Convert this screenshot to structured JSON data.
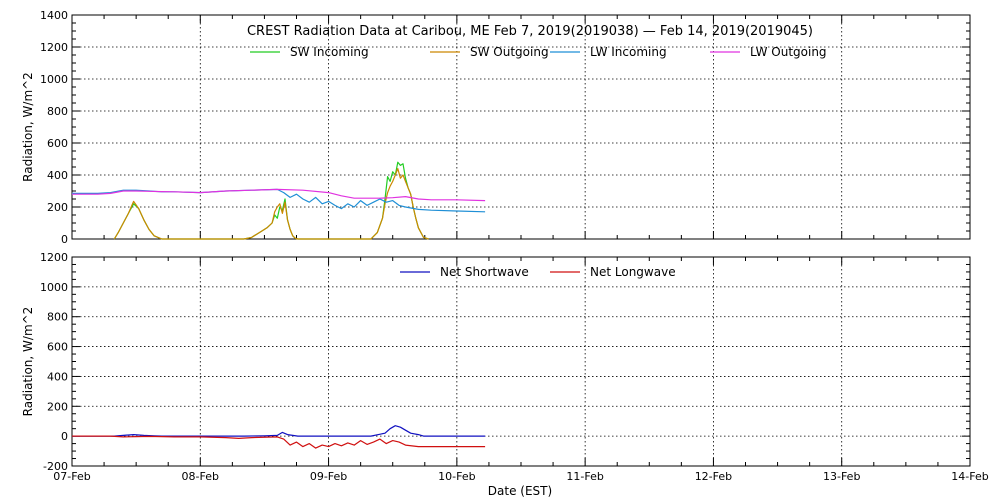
{
  "title": "CREST Radiation Data at Caribou, ME   Feb  7, 2019(2019038) — Feb 14, 2019(2019045)",
  "xlabel": "Date (EST)",
  "x_ticks": [
    "07-Feb",
    "08-Feb",
    "09-Feb",
    "10-Feb",
    "11-Feb",
    "12-Feb",
    "13-Feb",
    "14-Feb"
  ],
  "chart_data": [
    {
      "type": "line",
      "x_unit": "days since 07-Feb 00:00 EST",
      "xlim": [
        0,
        7
      ],
      "ylabel": "Radiation, W/m^2",
      "ylim": [
        0,
        1400
      ],
      "yticks": [
        0,
        200,
        400,
        600,
        800,
        1000,
        1200,
        1400
      ],
      "grid": true,
      "legend_position": "top",
      "series": [
        {
          "name": "SW Incoming",
          "color": "#22cc22",
          "x": [
            0.33,
            0.36,
            0.4,
            0.44,
            0.48,
            0.52,
            0.56,
            0.6,
            0.64,
            0.7,
            1.34,
            1.4,
            1.44,
            1.48,
            1.52,
            1.56,
            1.58,
            1.6,
            1.62,
            1.64,
            1.66,
            1.68,
            1.7,
            1.72,
            1.74,
            1.76,
            2.33,
            2.38,
            2.42,
            2.44,
            2.46,
            2.48,
            2.5,
            2.52,
            2.54,
            2.56,
            2.58,
            2.6,
            2.62,
            2.64,
            2.66,
            2.68,
            2.7,
            2.74,
            2.78
          ],
          "y": [
            0,
            40,
            100,
            160,
            220,
            190,
            120,
            60,
            20,
            0,
            0,
            10,
            30,
            50,
            70,
            100,
            150,
            130,
            200,
            180,
            250,
            120,
            60,
            20,
            5,
            0,
            0,
            40,
            130,
            250,
            390,
            360,
            420,
            400,
            480,
            460,
            470,
            380,
            320,
            280,
            200,
            130,
            70,
            10,
            0
          ]
        },
        {
          "name": "SW Outgoing",
          "color": "#cc8800",
          "x": [
            0.33,
            0.36,
            0.4,
            0.44,
            0.48,
            0.52,
            0.56,
            0.6,
            0.64,
            0.7,
            1.34,
            1.4,
            1.44,
            1.48,
            1.52,
            1.56,
            1.58,
            1.6,
            1.62,
            1.64,
            1.66,
            1.68,
            1.7,
            1.72,
            1.74,
            1.76,
            2.33,
            2.38,
            2.42,
            2.44,
            2.46,
            2.48,
            2.5,
            2.52,
            2.54,
            2.56,
            2.58,
            2.6,
            2.62,
            2.64,
            2.66,
            2.68,
            2.7,
            2.74,
            2.78
          ],
          "y": [
            0,
            40,
            100,
            160,
            235,
            190,
            120,
            60,
            20,
            0,
            0,
            10,
            30,
            50,
            70,
            100,
            170,
            200,
            220,
            160,
            230,
            120,
            60,
            20,
            5,
            0,
            0,
            40,
            130,
            220,
            290,
            330,
            360,
            400,
            440,
            380,
            400,
            360,
            320,
            280,
            200,
            130,
            70,
            10,
            0
          ]
        },
        {
          "name": "LW Incoming",
          "color": "#1f8fd6",
          "x": [
            0,
            0.2,
            0.3,
            0.4,
            0.5,
            0.6,
            0.7,
            0.8,
            1.0,
            1.2,
            1.4,
            1.6,
            1.65,
            1.7,
            1.75,
            1.8,
            1.85,
            1.9,
            1.95,
            2.0,
            2.05,
            2.1,
            2.15,
            2.2,
            2.25,
            2.3,
            2.35,
            2.4,
            2.45,
            2.5,
            2.55,
            2.6,
            2.7,
            2.8,
            3.0,
            3.22
          ],
          "y": [
            285,
            285,
            290,
            305,
            305,
            300,
            295,
            295,
            290,
            300,
            305,
            310,
            290,
            260,
            280,
            250,
            230,
            260,
            220,
            235,
            210,
            190,
            220,
            200,
            240,
            210,
            230,
            250,
            230,
            240,
            210,
            200,
            185,
            180,
            175,
            170
          ]
        },
        {
          "name": "LW Outgoing",
          "color": "#e033e0",
          "x": [
            0,
            0.2,
            0.3,
            0.4,
            0.5,
            0.6,
            0.7,
            0.8,
            1.0,
            1.2,
            1.4,
            1.6,
            1.8,
            2.0,
            2.1,
            2.2,
            2.4,
            2.5,
            2.6,
            2.7,
            2.8,
            3.0,
            3.22
          ],
          "y": [
            280,
            280,
            285,
            300,
            300,
            298,
            296,
            295,
            290,
            300,
            305,
            310,
            305,
            290,
            270,
            255,
            255,
            258,
            265,
            250,
            245,
            245,
            240
          ]
        }
      ]
    },
    {
      "type": "line",
      "x_unit": "days since 07-Feb 00:00 EST",
      "xlim": [
        0,
        7
      ],
      "ylabel": "Radiation, W/m^2",
      "ylim": [
        -200,
        1200
      ],
      "yticks": [
        -200,
        0,
        200,
        400,
        600,
        800,
        1000,
        1200
      ],
      "grid": true,
      "legend_position": "top",
      "series": [
        {
          "name": "Net Shortwave",
          "color": "#1010c0",
          "x": [
            0,
            0.33,
            0.4,
            0.48,
            0.56,
            0.64,
            0.7,
            1.34,
            1.5,
            1.6,
            1.64,
            1.68,
            1.72,
            1.76,
            2.33,
            2.44,
            2.48,
            2.52,
            2.56,
            2.6,
            2.64,
            2.7,
            2.74,
            2.78,
            3.22
          ],
          "y": [
            0,
            0,
            5,
            10,
            5,
            2,
            0,
            0,
            2,
            5,
            25,
            10,
            5,
            0,
            0,
            20,
            50,
            70,
            60,
            40,
            20,
            10,
            0,
            0,
            0
          ]
        },
        {
          "name": "Net Longwave",
          "color": "#d01010",
          "x": [
            0,
            0.3,
            0.4,
            0.5,
            0.6,
            0.7,
            0.8,
            1.0,
            1.2,
            1.3,
            1.4,
            1.6,
            1.65,
            1.7,
            1.75,
            1.8,
            1.85,
            1.9,
            1.95,
            2.0,
            2.05,
            2.1,
            2.15,
            2.2,
            2.25,
            2.3,
            2.35,
            2.4,
            2.45,
            2.5,
            2.55,
            2.6,
            2.7,
            2.8,
            3.0,
            3.22
          ],
          "y": [
            0,
            0,
            -5,
            -3,
            -2,
            -3,
            -5,
            -5,
            -10,
            -15,
            -10,
            -5,
            -20,
            -60,
            -40,
            -70,
            -50,
            -80,
            -60,
            -70,
            -50,
            -65,
            -45,
            -60,
            -30,
            -55,
            -40,
            -20,
            -50,
            -30,
            -40,
            -60,
            -70,
            -70,
            -70,
            -70
          ]
        }
      ]
    }
  ]
}
